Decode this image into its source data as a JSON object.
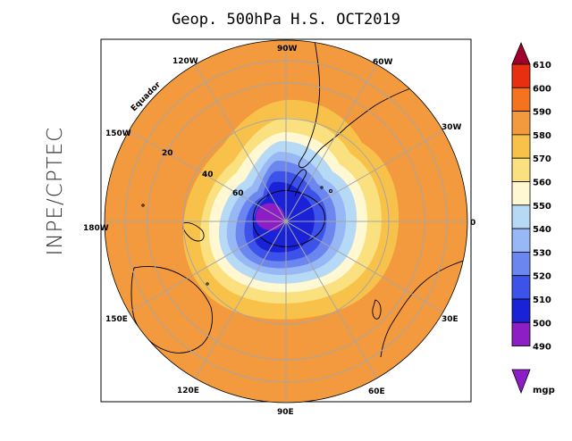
{
  "title": "Geop. 500hPa H.S. OCT2019",
  "side_label": "INPE/CPTEC",
  "equator_label": "Equador",
  "longitude_labels": [
    "90W",
    "60W",
    "30W",
    "0",
    "30E",
    "60E",
    "90E",
    "120E",
    "150E",
    "180W",
    "150W",
    "120W"
  ],
  "latitude_labels": [
    "20",
    "40",
    "60"
  ],
  "colorbar": {
    "unit": "mgp",
    "levels": [
      "610",
      "600",
      "590",
      "580",
      "570",
      "560",
      "550",
      "540",
      "530",
      "520",
      "510",
      "500",
      "490"
    ],
    "colors": [
      "#a0002c",
      "#e83010",
      "#f5721e",
      "#f39a3e",
      "#f8c24a",
      "#fae07e",
      "#fff8d2",
      "#b6daf6",
      "#97b7f5",
      "#6b86ef",
      "#3c52e8",
      "#1a22d7",
      "#8d1ec6"
    ],
    "top_color": "#a0002c",
    "bottom_color": "#8d1ec6"
  },
  "colors": {
    "ring_580": "#f39a3e",
    "ring_570": "#f8c24a",
    "ring_560": "#fae07e",
    "ring_550": "#fff8d2",
    "ring_540": "#b6daf6",
    "ring_530": "#97b7f5",
    "ring_520": "#6b86ef",
    "ring_510": "#3c52e8",
    "ring_500": "#1a22d7",
    "core_490": "#8d1ec6"
  }
}
